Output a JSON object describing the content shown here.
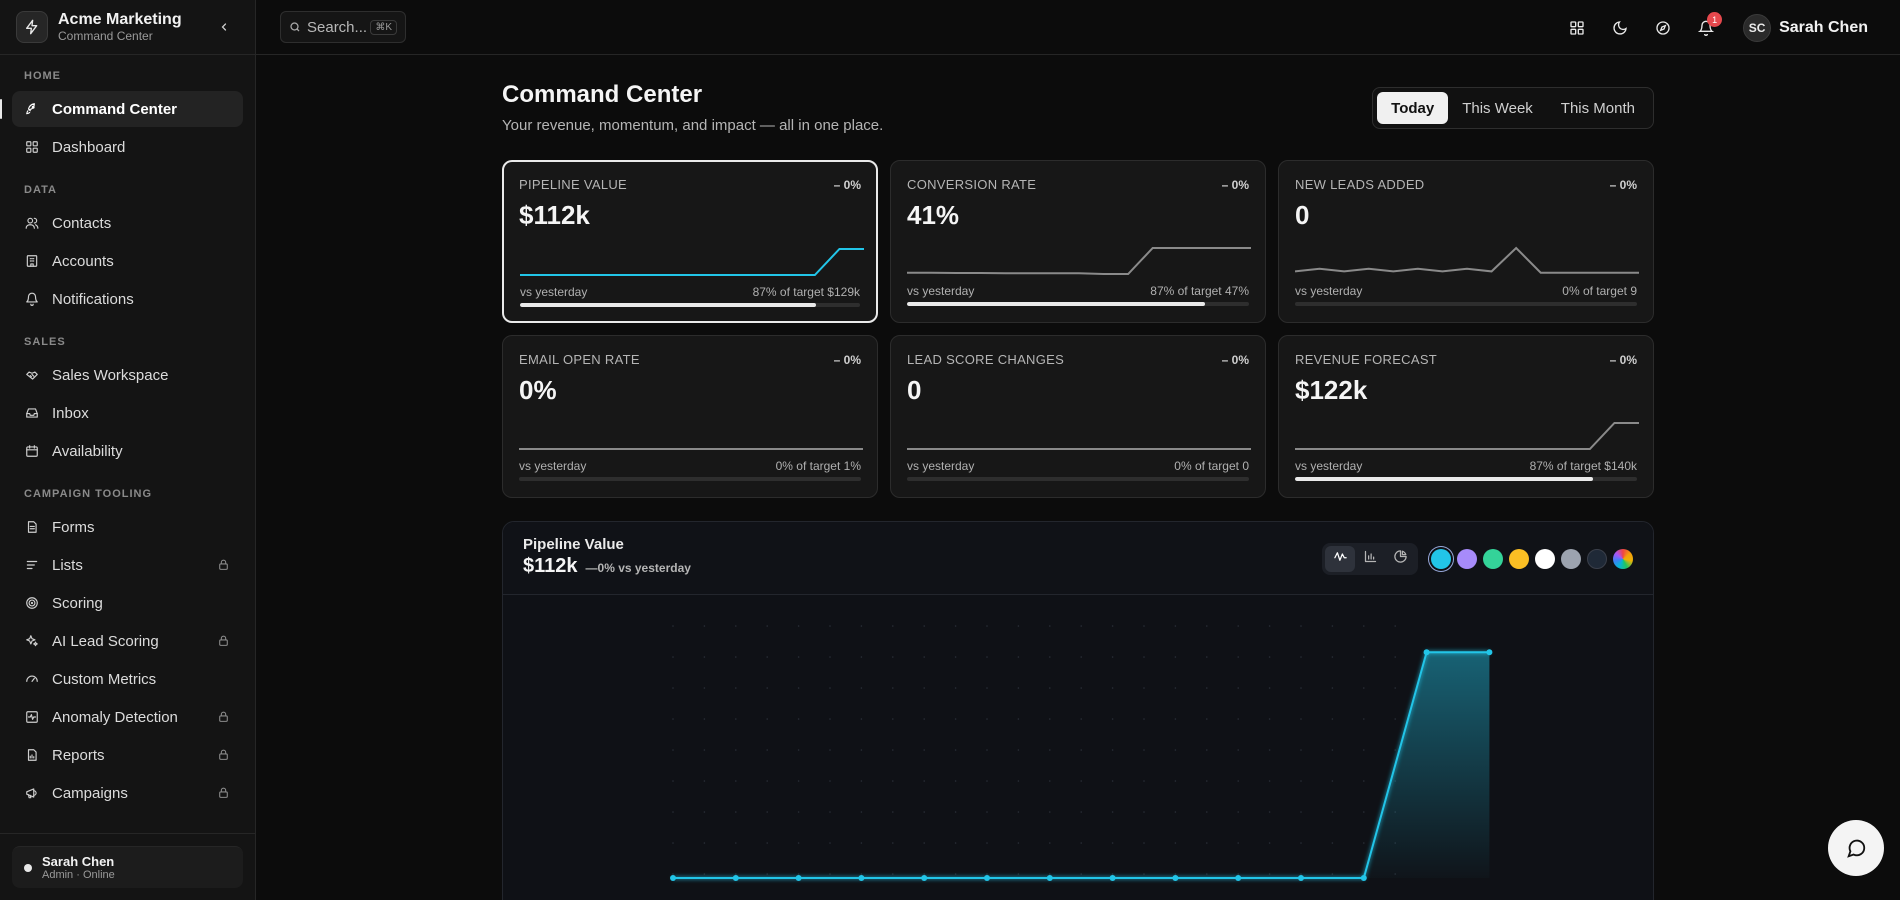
{
  "brand": {
    "name": "Acme Marketing",
    "subtitle": "Command Center"
  },
  "sidebar": {
    "sections": [
      {
        "label": "HOME",
        "items": [
          {
            "label": "Command Center",
            "icon": "rocket-icon",
            "active": true,
            "locked": false
          },
          {
            "label": "Dashboard",
            "icon": "grid-icon",
            "active": false,
            "locked": false
          }
        ]
      },
      {
        "label": "DATA",
        "items": [
          {
            "label": "Contacts",
            "icon": "users-icon",
            "locked": false
          },
          {
            "label": "Accounts",
            "icon": "building-icon",
            "locked": false
          },
          {
            "label": "Notifications",
            "icon": "bell-icon",
            "locked": false
          }
        ]
      },
      {
        "label": "SALES",
        "items": [
          {
            "label": "Sales Workspace",
            "icon": "handshake-icon",
            "locked": false
          },
          {
            "label": "Inbox",
            "icon": "inbox-icon",
            "locked": false
          },
          {
            "label": "Availability",
            "icon": "calendar-icon",
            "locked": false
          }
        ]
      },
      {
        "label": "CAMPAIGN TOOLING",
        "items": [
          {
            "label": "Forms",
            "icon": "document-icon",
            "locked": false
          },
          {
            "label": "Lists",
            "icon": "list-icon",
            "locked": true
          },
          {
            "label": "Scoring",
            "icon": "target-icon",
            "locked": false
          },
          {
            "label": "AI Lead Scoring",
            "icon": "sparkles-icon",
            "locked": true
          },
          {
            "label": "Custom Metrics",
            "icon": "gauge-icon",
            "locked": false
          },
          {
            "label": "Anomaly Detection",
            "icon": "activity-icon",
            "locked": true
          },
          {
            "label": "Reports",
            "icon": "report-icon",
            "locked": true
          },
          {
            "label": "Campaigns",
            "icon": "megaphone-icon",
            "locked": true
          }
        ]
      }
    ],
    "footer_user": {
      "name": "Sarah Chen",
      "subtitle": "Admin · Online"
    }
  },
  "topbar": {
    "search_placeholder": "Search...",
    "search_shortcut": "⌘K",
    "notification_count": "1",
    "user_initials": "SC",
    "user_name": "Sarah Chen"
  },
  "page": {
    "title": "Command Center",
    "subtitle": "Your revenue, momentum, and impact — all in one place.",
    "ranges": [
      "Today",
      "This Week",
      "This Month"
    ],
    "active_range": "Today"
  },
  "cards": [
    {
      "label": "PIPELINE VALUE",
      "delta": "– 0%",
      "value": "$112k",
      "compare": "vs yesterday",
      "target": "87% of target $129k",
      "progress": 0.87,
      "selected": true,
      "spark_color": "#22c5e8",
      "spark": [
        0,
        0,
        0,
        0,
        0,
        0,
        0,
        0,
        0,
        0,
        0,
        0,
        0,
        1,
        1
      ]
    },
    {
      "label": "CONVERSION RATE",
      "delta": "– 0%",
      "value": "41%",
      "compare": "vs yesterday",
      "target": "87% of target 47%",
      "progress": 0.87,
      "selected": false,
      "spark_color": "#8a8a8a",
      "spark": [
        0.05,
        0.05,
        0.04,
        0.04,
        0.03,
        0.03,
        0.03,
        0.03,
        0,
        0,
        1,
        1,
        1,
        1,
        1
      ]
    },
    {
      "label": "NEW LEADS ADDED",
      "delta": "– 0%",
      "value": "0",
      "compare": "vs yesterday",
      "target": "0% of target 9",
      "progress": 0,
      "selected": false,
      "spark_color": "#8a8a8a",
      "spark": [
        0.1,
        0.2,
        0.1,
        0.2,
        0.1,
        0.2,
        0.1,
        0.2,
        0.1,
        1,
        0.05,
        0.05,
        0.05,
        0.05,
        0.05
      ]
    },
    {
      "label": "EMAIL OPEN RATE",
      "delta": "– 0%",
      "value": "0%",
      "compare": "vs yesterday",
      "target": "0% of target 1%",
      "progress": 0,
      "selected": false,
      "spark_color": "#8a8a8a",
      "spark": [
        0,
        0,
        0,
        0,
        0,
        0,
        0,
        0,
        0,
        0,
        0,
        0,
        0,
        0,
        0
      ]
    },
    {
      "label": "LEAD SCORE CHANGES",
      "delta": "– 0%",
      "value": "0",
      "compare": "vs yesterday",
      "target": "0% of target 0",
      "progress": 0,
      "selected": false,
      "spark_color": "#8a8a8a",
      "spark": [
        0,
        0,
        0,
        0,
        0,
        0,
        0,
        0,
        0,
        0,
        0,
        0,
        0,
        0,
        0
      ]
    },
    {
      "label": "REVENUE FORECAST",
      "delta": "– 0%",
      "value": "$122k",
      "compare": "vs yesterday",
      "target": "87% of target $140k",
      "progress": 0.87,
      "selected": false,
      "spark_color": "#8a8a8a",
      "spark": [
        0,
        0,
        0,
        0,
        0,
        0,
        0,
        0,
        0,
        0,
        0,
        0,
        0,
        1,
        1
      ]
    }
  ],
  "chart_panel": {
    "title": "Pipeline Value",
    "value": "$112k",
    "delta": "—0% vs yesterday",
    "chart_types": [
      "line-chart-icon",
      "bar-chart-icon",
      "pie-chart-icon"
    ],
    "active_type": "line-chart-icon",
    "swatches": [
      "#22c5e8",
      "#a78bfa",
      "#34d399",
      "#fbbf24",
      "#ffffff",
      "#9ca3af",
      "#1f2937",
      "rainbow"
    ],
    "active_swatch": "#22c5e8"
  },
  "chart_data": {
    "type": "area",
    "x": [
      1,
      2,
      3,
      4,
      5,
      6,
      7,
      8,
      9,
      10,
      11,
      12,
      13,
      14
    ],
    "values": [
      0,
      0,
      0,
      0,
      0,
      0,
      0,
      0,
      0,
      0,
      0,
      0,
      112,
      112
    ],
    "ylim": [
      0,
      125
    ],
    "grid": true,
    "color": "#22c5e8"
  }
}
